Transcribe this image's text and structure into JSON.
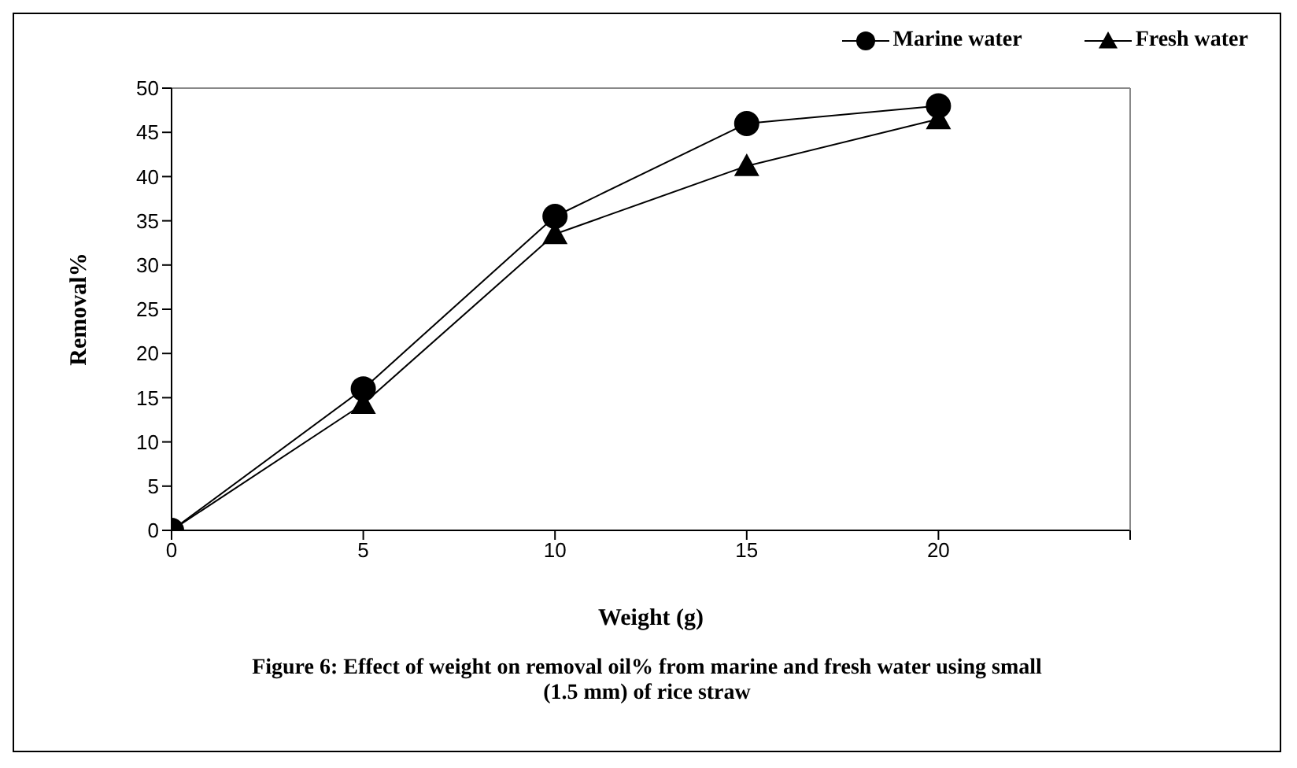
{
  "chart_data": {
    "type": "line",
    "xlabel": "Weight (g)",
    "ylabel": "Removal%",
    "x": [
      0,
      5,
      10,
      15,
      20
    ],
    "series": [
      {
        "name": "Marine water",
        "color": "#000000",
        "marker": "circle",
        "values": [
          0,
          16,
          35.5,
          46,
          48
        ]
      },
      {
        "name": "Fresh water",
        "color": "#000000",
        "marker": "triangle",
        "values": [
          0,
          14.3,
          33.5,
          41.2,
          46.5
        ]
      }
    ],
    "xlim": [
      0,
      25
    ],
    "xticks": [
      0,
      5,
      10,
      15,
      20,
      {
        "value": 25,
        "label": null
      }
    ],
    "ylim": [
      0,
      50
    ],
    "yticks": [
      0,
      5,
      10,
      15,
      20,
      25,
      30,
      35,
      40,
      45,
      50
    ],
    "legend": "top right",
    "grid": false,
    "line_style": "solid",
    "annotations": [
      "Figure 6: Effect of weight on removal oil% from marine and fresh water using  small (1.5 mm) of rice straw"
    ]
  }
}
